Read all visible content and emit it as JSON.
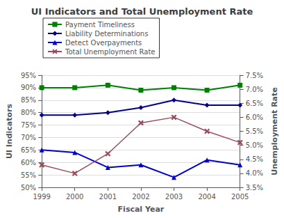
{
  "chart_data": {
    "type": "line",
    "title": "UI Indicators and Total Unemployment Rate",
    "x_label": "Fiscal Year",
    "y_label": "UI Indicators",
    "y2_label": "Unemployment Rate",
    "categories": [
      "1999",
      "2000",
      "2001",
      "2002",
      "2003",
      "2004",
      "2005"
    ],
    "series": [
      {
        "name": "Payment Timeliness",
        "color": "#008000",
        "marker": "square",
        "values": [
          90,
          90,
          91,
          89,
          90,
          89,
          91
        ]
      },
      {
        "name": "Liability Determinations",
        "color": "#00008B",
        "marker": "diamond",
        "values": [
          79,
          79,
          80,
          82,
          85,
          83,
          83
        ]
      },
      {
        "name": "Detect Overpayments",
        "color": "#0000CD",
        "marker": "triangle",
        "values": [
          65,
          64,
          58,
          59,
          54,
          61,
          59
        ]
      },
      {
        "name": "Total Unemployment Rate",
        "color": "#9B4B5A",
        "marker": "x",
        "axis": "y2",
        "values": [
          4.3,
          4.0,
          4.7,
          5.8,
          6.0,
          5.5,
          5.1
        ]
      }
    ],
    "ylim": [
      50,
      95
    ],
    "yticks": [
      {
        "value": 50,
        "label": "50%"
      },
      {
        "value": 55,
        "label": "55%"
      },
      {
        "value": 60,
        "label": "60%"
      },
      {
        "value": 65,
        "label": "65%"
      },
      {
        "value": 70,
        "label": "70%"
      },
      {
        "value": 75,
        "label": "75%"
      },
      {
        "value": 80,
        "label": "80%"
      },
      {
        "value": 85,
        "label": "85%"
      },
      {
        "value": 90,
        "label": "90%"
      },
      {
        "value": 95,
        "label": "95%"
      }
    ],
    "y2lim": [
      3.5,
      7.5
    ],
    "y2ticks": [
      {
        "value": 3.5,
        "label": "3.5%"
      },
      {
        "value": 4.0,
        "label": "4.0%"
      },
      {
        "value": 4.5,
        "label": "4.5%"
      },
      {
        "value": 5.0,
        "label": "5.0%"
      },
      {
        "value": 5.5,
        "label": "5.5%"
      },
      {
        "value": 6.0,
        "label": "6.0%"
      },
      {
        "value": 6.5,
        "label": "6.5%"
      },
      {
        "value": 7.0,
        "label": "7.0%"
      },
      {
        "value": 7.5,
        "label": "7.5%"
      }
    ],
    "grid": true,
    "legend": "upper left"
  }
}
